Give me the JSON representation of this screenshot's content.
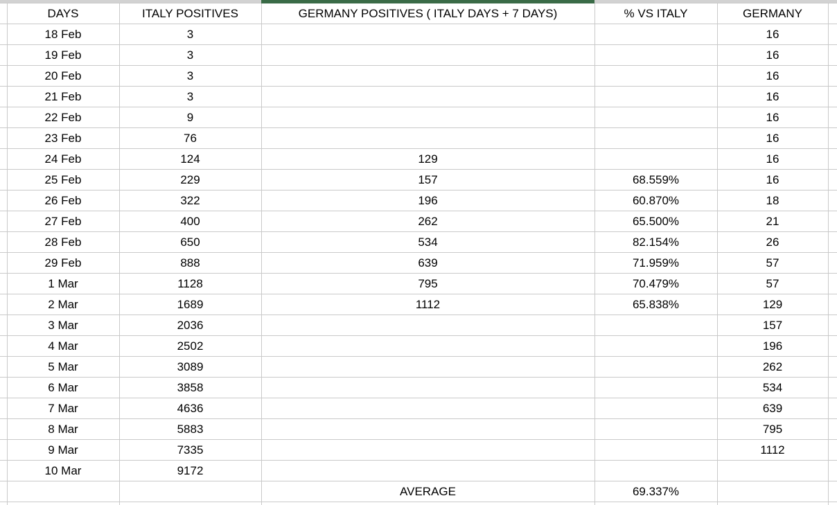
{
  "table": {
    "columns": [
      {
        "label": "DAYS"
      },
      {
        "label": "ITALY POSITIVES"
      },
      {
        "label": "GERMANY POSITIVES ( ITALY DAYS + 7 DAYS)"
      },
      {
        "label": "% VS ITALY"
      },
      {
        "label": "GERMANY"
      }
    ],
    "rows": [
      {
        "days": "18 Feb",
        "italy": "3",
        "germany_shifted": "",
        "pct": "",
        "germany": "16"
      },
      {
        "days": "19 Feb",
        "italy": "3",
        "germany_shifted": "",
        "pct": "",
        "germany": "16"
      },
      {
        "days": "20 Feb",
        "italy": "3",
        "germany_shifted": "",
        "pct": "",
        "germany": "16"
      },
      {
        "days": "21 Feb",
        "italy": "3",
        "germany_shifted": "",
        "pct": "",
        "germany": "16"
      },
      {
        "days": "22 Feb",
        "italy": "9",
        "germany_shifted": "",
        "pct": "",
        "germany": "16"
      },
      {
        "days": "23 Feb",
        "italy": "76",
        "germany_shifted": "",
        "pct": "",
        "germany": "16"
      },
      {
        "days": "24 Feb",
        "italy": "124",
        "germany_shifted": "129",
        "pct": "",
        "germany": "16"
      },
      {
        "days": "25 Feb",
        "italy": "229",
        "germany_shifted": "157",
        "pct": "68.559%",
        "germany": "16"
      },
      {
        "days": "26 Feb",
        "italy": "322",
        "germany_shifted": "196",
        "pct": "60.870%",
        "germany": "18"
      },
      {
        "days": "27 Feb",
        "italy": "400",
        "germany_shifted": "262",
        "pct": "65.500%",
        "germany": "21"
      },
      {
        "days": "28 Feb",
        "italy": "650",
        "germany_shifted": "534",
        "pct": "82.154%",
        "germany": "26"
      },
      {
        "days": "29 Feb",
        "italy": "888",
        "germany_shifted": "639",
        "pct": "71.959%",
        "germany": "57"
      },
      {
        "days": "1 Mar",
        "italy": "1128",
        "germany_shifted": "795",
        "pct": "70.479%",
        "germany": "57"
      },
      {
        "days": "2 Mar",
        "italy": "1689",
        "germany_shifted": "1112",
        "pct": "65.838%",
        "germany": "129"
      },
      {
        "days": "3 Mar",
        "italy": "2036",
        "germany_shifted": "",
        "pct": "",
        "germany": "157"
      },
      {
        "days": "4 Mar",
        "italy": "2502",
        "germany_shifted": "",
        "pct": "",
        "germany": "196"
      },
      {
        "days": "5 Mar",
        "italy": "3089",
        "germany_shifted": "",
        "pct": "",
        "germany": "262"
      },
      {
        "days": "6 Mar",
        "italy": "3858",
        "germany_shifted": "",
        "pct": "",
        "germany": "534"
      },
      {
        "days": "7 Mar",
        "italy": "4636",
        "germany_shifted": "",
        "pct": "",
        "germany": "639"
      },
      {
        "days": "8 Mar",
        "italy": "5883",
        "germany_shifted": "",
        "pct": "",
        "germany": "795"
      },
      {
        "days": "9 Mar",
        "italy": "7335",
        "germany_shifted": "",
        "pct": "",
        "germany": "1112"
      },
      {
        "days": "10 Mar",
        "italy": "9172",
        "germany_shifted": "",
        "pct": "",
        "germany": ""
      }
    ],
    "footer": {
      "average_label": "AVERAGE",
      "average_pct": "69.337%"
    }
  },
  "colors": {
    "accent_green": "#3a6b47",
    "grid_line": "#c9c9c9"
  }
}
